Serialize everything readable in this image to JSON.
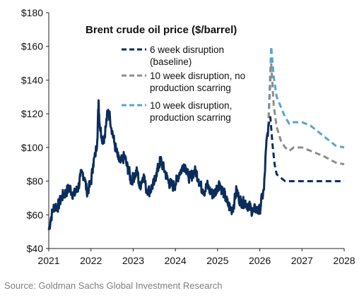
{
  "chart_data": {
    "type": "line",
    "title": "Brent crude oil price ($/barrel)",
    "xlabel": "",
    "ylabel": "",
    "xlim": [
      2021,
      2028
    ],
    "ylim": [
      40,
      180
    ],
    "x_ticks": [
      "2021",
      "2022",
      "2023",
      "2024",
      "2025",
      "2026",
      "2027",
      "2028"
    ],
    "y_ticks": [
      "$40",
      "$60",
      "$80",
      "$100",
      "$120",
      "$140",
      "$160",
      "$180"
    ],
    "grid": false,
    "legend_position": "top-center",
    "colors": {
      "history": "#0b2d5b",
      "baseline": "#0b2d5b",
      "no_scarring": "#8c8c8c",
      "scarring": "#5ba3d0"
    },
    "history": {
      "x": [
        2021.0,
        2021.05,
        2021.1,
        2021.15,
        2021.2,
        2021.25,
        2021.3,
        2021.35,
        2021.4,
        2021.45,
        2021.5,
        2021.55,
        2021.6,
        2021.65,
        2021.7,
        2021.75,
        2021.8,
        2021.85,
        2021.9,
        2021.95,
        2022.0,
        2022.05,
        2022.1,
        2022.15,
        2022.18,
        2022.2,
        2022.25,
        2022.3,
        2022.35,
        2022.4,
        2022.45,
        2022.5,
        2022.55,
        2022.6,
        2022.65,
        2022.7,
        2022.75,
        2022.8,
        2022.85,
        2022.9,
        2022.95,
        2023.0,
        2023.05,
        2023.1,
        2023.15,
        2023.2,
        2023.25,
        2023.3,
        2023.35,
        2023.4,
        2023.45,
        2023.5,
        2023.55,
        2023.6,
        2023.65,
        2023.7,
        2023.75,
        2023.8,
        2023.85,
        2023.9,
        2023.95,
        2024.0,
        2024.05,
        2024.1,
        2024.15,
        2024.2,
        2024.25,
        2024.3,
        2024.35,
        2024.4,
        2024.45,
        2024.5,
        2024.55,
        2024.6,
        2024.65,
        2024.7,
        2024.75,
        2024.8,
        2024.85,
        2024.9,
        2024.95,
        2025.0,
        2025.05,
        2025.1,
        2025.15,
        2025.2,
        2025.25,
        2025.3,
        2025.35,
        2025.4,
        2025.45,
        2025.5,
        2025.55,
        2025.6,
        2025.65,
        2025.7,
        2025.75,
        2025.8,
        2025.85,
        2025.9,
        2025.95,
        2026.0,
        2026.05,
        2026.1,
        2026.15,
        2026.2
      ],
      "y": [
        51,
        58,
        63,
        66,
        64,
        67,
        70,
        72,
        73,
        75,
        76,
        73,
        72,
        74,
        76,
        83,
        85,
        82,
        74,
        76,
        79,
        90,
        95,
        105,
        128,
        115,
        107,
        104,
        112,
        122,
        118,
        110,
        103,
        98,
        93,
        91,
        93,
        95,
        89,
        86,
        80,
        82,
        84,
        86,
        76,
        80,
        84,
        76,
        75,
        74,
        77,
        79,
        85,
        88,
        93,
        89,
        86,
        82,
        79,
        78,
        77,
        78,
        82,
        85,
        87,
        90,
        88,
        83,
        82,
        84,
        86,
        85,
        81,
        77,
        75,
        74,
        78,
        75,
        73,
        72,
        74,
        77,
        79,
        75,
        73,
        69,
        66,
        64,
        63,
        68,
        75,
        70,
        68,
        67,
        68,
        66,
        65,
        63,
        62,
        64,
        62,
        63,
        70,
        75,
        100,
        112
      ]
    },
    "series": [
      {
        "name": "6 week disruption (baseline)",
        "x": [
          2026.2,
          2026.25,
          2026.3,
          2026.35,
          2026.4,
          2026.5,
          2026.6,
          2026.7,
          2026.8,
          2027.0,
          2027.5,
          2028.0
        ],
        "y": [
          112,
          118,
          102,
          90,
          84,
          82,
          80,
          80,
          80,
          80,
          80,
          80
        ]
      },
      {
        "name": "10 week disruption, no production scarring",
        "x": [
          2026.2,
          2026.27,
          2026.33,
          2026.4,
          2026.5,
          2026.6,
          2026.7,
          2026.8,
          2027.0,
          2027.2,
          2027.5,
          2027.8,
          2028.0
        ],
        "y": [
          112,
          150,
          125,
          112,
          104,
          100,
          98,
          100,
          100,
          98,
          95,
          91,
          90
        ]
      },
      {
        "name": "10 week disruption, production scarring",
        "x": [
          2026.2,
          2026.27,
          2026.33,
          2026.4,
          2026.5,
          2026.6,
          2026.7,
          2026.8,
          2027.0,
          2027.2,
          2027.5,
          2027.8,
          2028.0
        ],
        "y": [
          112,
          160,
          142,
          130,
          124,
          118,
          114,
          115,
          115,
          113,
          107,
          101,
          100
        ]
      }
    ],
    "legend": [
      {
        "line1": "6 week disruption",
        "line2": "(baseline)"
      },
      {
        "line1": "10 week disruption, no",
        "line2": "production scarring"
      },
      {
        "line1": "10 week disruption,",
        "line2": "production scarring"
      }
    ]
  },
  "source": "Source: Goldman Sachs Global Investment Research"
}
